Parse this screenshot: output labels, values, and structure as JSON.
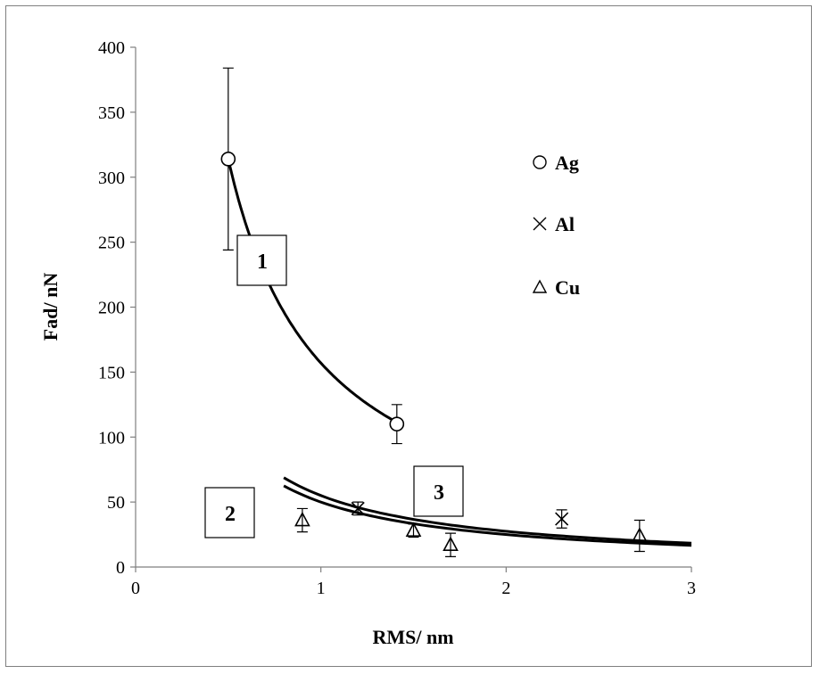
{
  "chart_data": {
    "type": "scatter",
    "xlabel": "RMS/ nm",
    "ylabel": "Fad/ nN",
    "xlim": [
      0,
      3
    ],
    "ylim": [
      0,
      400
    ],
    "xticks": [
      0,
      1,
      2,
      3
    ],
    "yticks": [
      0,
      50,
      100,
      150,
      200,
      250,
      300,
      350,
      400
    ],
    "grid": false,
    "legend_position": "top-right",
    "series": [
      {
        "name": "Ag",
        "marker": "circle",
        "points": [
          {
            "x": 0.5,
            "y": 314,
            "err": 70
          },
          {
            "x": 1.41,
            "y": 110,
            "err": 15
          }
        ]
      },
      {
        "name": "Al",
        "marker": "x",
        "points": [
          {
            "x": 1.2,
            "y": 45,
            "err": 5
          },
          {
            "x": 2.3,
            "y": 37,
            "err": 7
          }
        ]
      },
      {
        "name": "Cu",
        "marker": "triangle",
        "points": [
          {
            "x": 0.9,
            "y": 36,
            "err": 9
          },
          {
            "x": 1.5,
            "y": 28,
            "err": 5
          },
          {
            "x": 1.7,
            "y": 17,
            "err": 9
          },
          {
            "x": 2.72,
            "y": 24,
            "err": 12
          }
        ]
      }
    ],
    "fits": [
      {
        "label": "1",
        "k": 157,
        "x_range": [
          0.5,
          1.41
        ]
      },
      {
        "label": "2",
        "k": 55,
        "x_range": [
          0.8,
          3.0
        ]
      },
      {
        "label": "3",
        "k": 50,
        "x_range": [
          0.8,
          3.0
        ]
      }
    ],
    "annotations": [
      "1",
      "2",
      "3"
    ]
  }
}
